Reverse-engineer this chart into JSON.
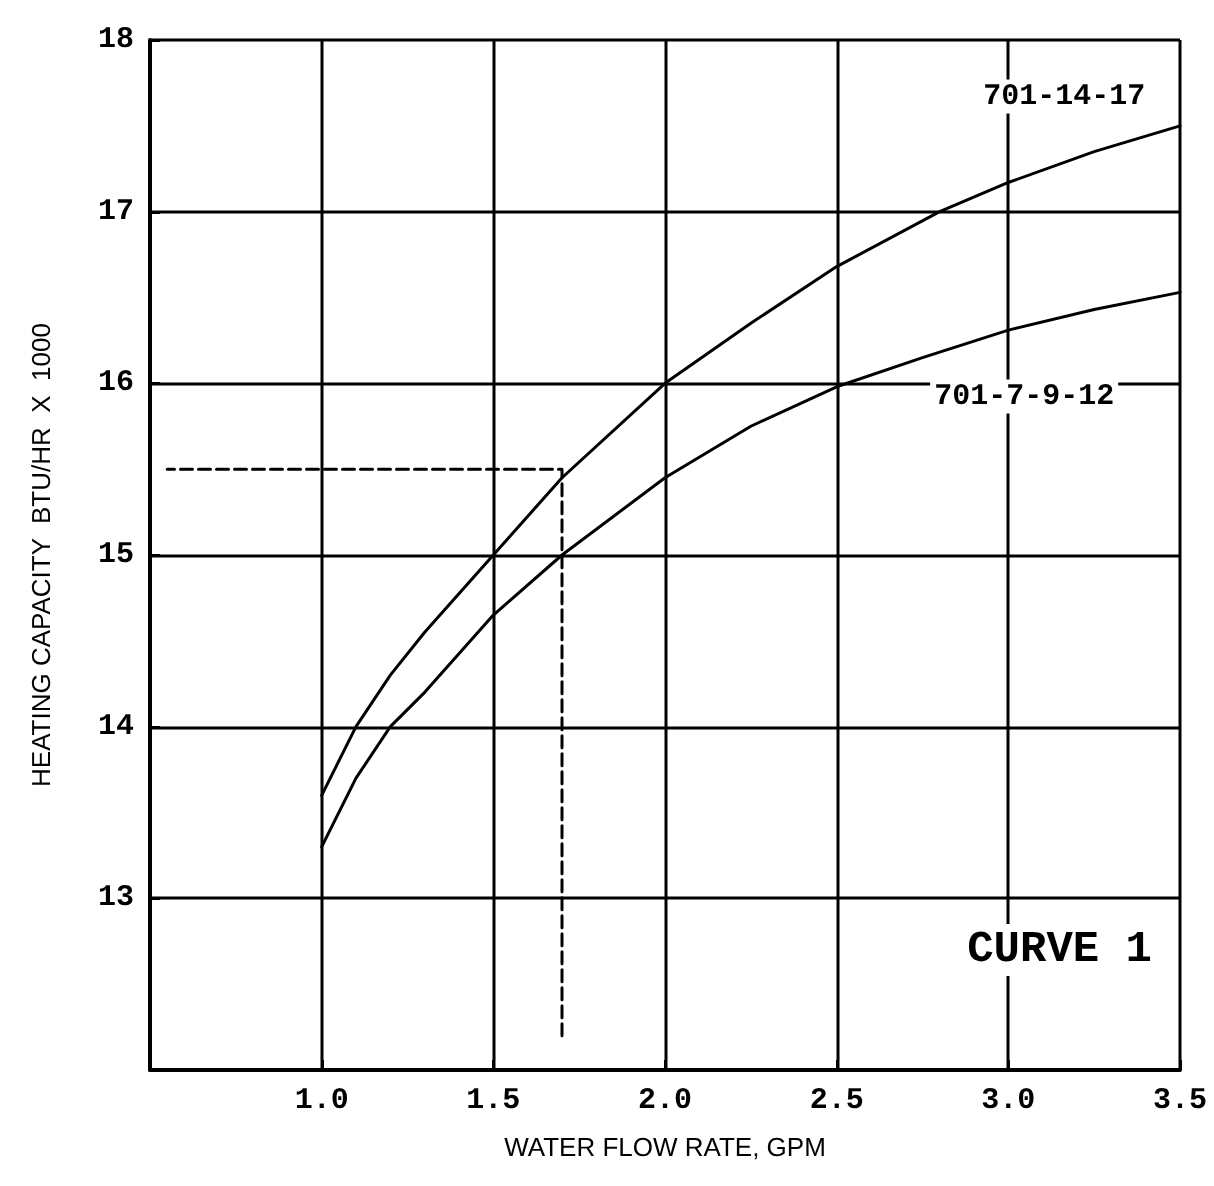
{
  "chart_data": {
    "type": "line",
    "xlabel": "WATER FLOW RATE, GPM",
    "ylabel": "HEATING CAPACITY  BTU/HR  X  1000",
    "annotations": [
      "CURVE 1"
    ],
    "xlim": [
      0.5,
      3.5
    ],
    "xticks": [
      {
        "value": 1,
        "label": "1.0"
      },
      1.5,
      {
        "value": 2,
        "label": "2.0"
      },
      2.5,
      {
        "value": 3,
        "label": "3.0"
      },
      3.5
    ],
    "ylim": [
      12,
      18
    ],
    "yticks": [
      13,
      14,
      15,
      16,
      17,
      18
    ],
    "grid": true,
    "legend": false,
    "marker": "none",
    "line_style": "solid",
    "series": [
      {
        "name": "701-14-17",
        "color": "#000000",
        "x": [
          1.0,
          1.1,
          1.2,
          1.3,
          1.5,
          1.7,
          2.0,
          2.25,
          2.5,
          2.8,
          3.0,
          3.25,
          3.5
        ],
        "values": [
          13.6,
          14.0,
          14.3,
          14.55,
          15.0,
          15.45,
          16.0,
          16.35,
          16.68,
          17.0,
          17.17,
          17.35,
          17.5
        ]
      },
      {
        "name": "701-7-9-12",
        "color": "#000000",
        "x": [
          1.0,
          1.1,
          1.2,
          1.3,
          1.5,
          1.7,
          2.0,
          2.25,
          2.5,
          2.75,
          3.0,
          3.25,
          3.5
        ],
        "values": [
          13.3,
          13.7,
          14.0,
          14.2,
          14.65,
          15.0,
          15.45,
          15.75,
          15.98,
          16.15,
          16.31,
          16.43,
          16.53
        ]
      },
      {
        "type": "line",
        "color": "#000000",
        "line_style": "dashed",
        "x": [
          1.7,
          1.7,
          0.55
        ],
        "values": [
          12.2,
          15.5,
          15.5
        ]
      }
    ]
  }
}
